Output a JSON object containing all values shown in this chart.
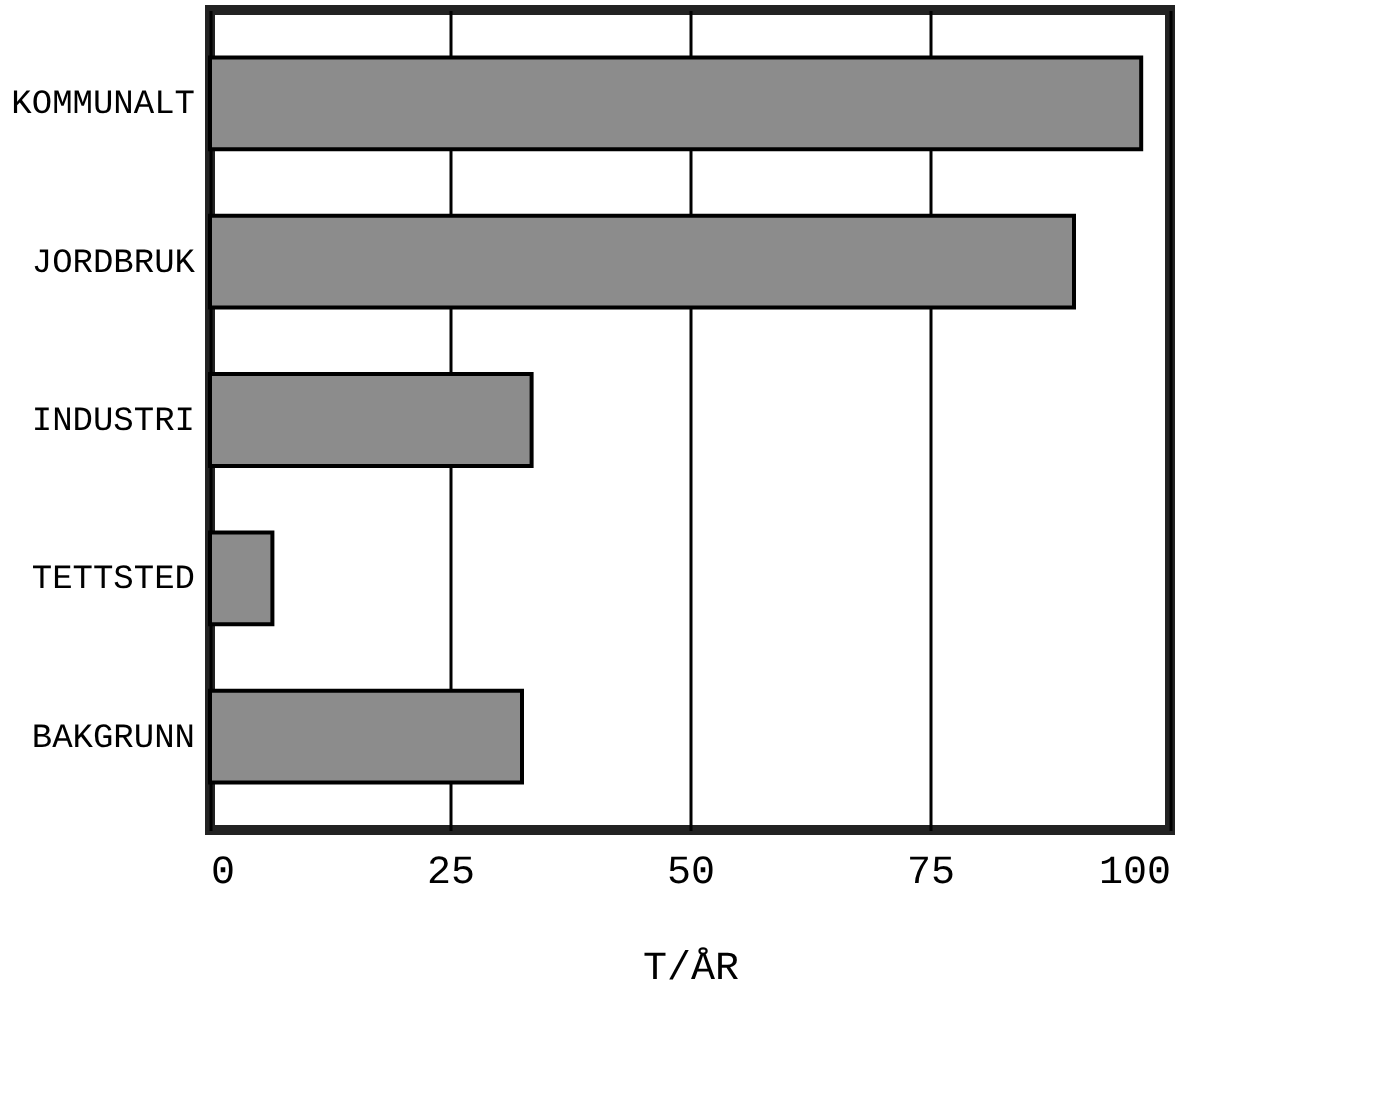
{
  "chart_data": {
    "type": "bar",
    "orientation": "horizontal",
    "categories": [
      "KOMMUNALT",
      "JORDBRUK",
      "INDUSTRI",
      "TETTSTED",
      "BAKGRUNN"
    ],
    "values": [
      97,
      90,
      33.5,
      6.5,
      32.5
    ],
    "color": "#8c8c8c",
    "xlabel": "T/ÅR",
    "xlim": [
      0,
      100
    ],
    "xticks": [
      0,
      25,
      50,
      75,
      100
    ],
    "grid": "x"
  }
}
